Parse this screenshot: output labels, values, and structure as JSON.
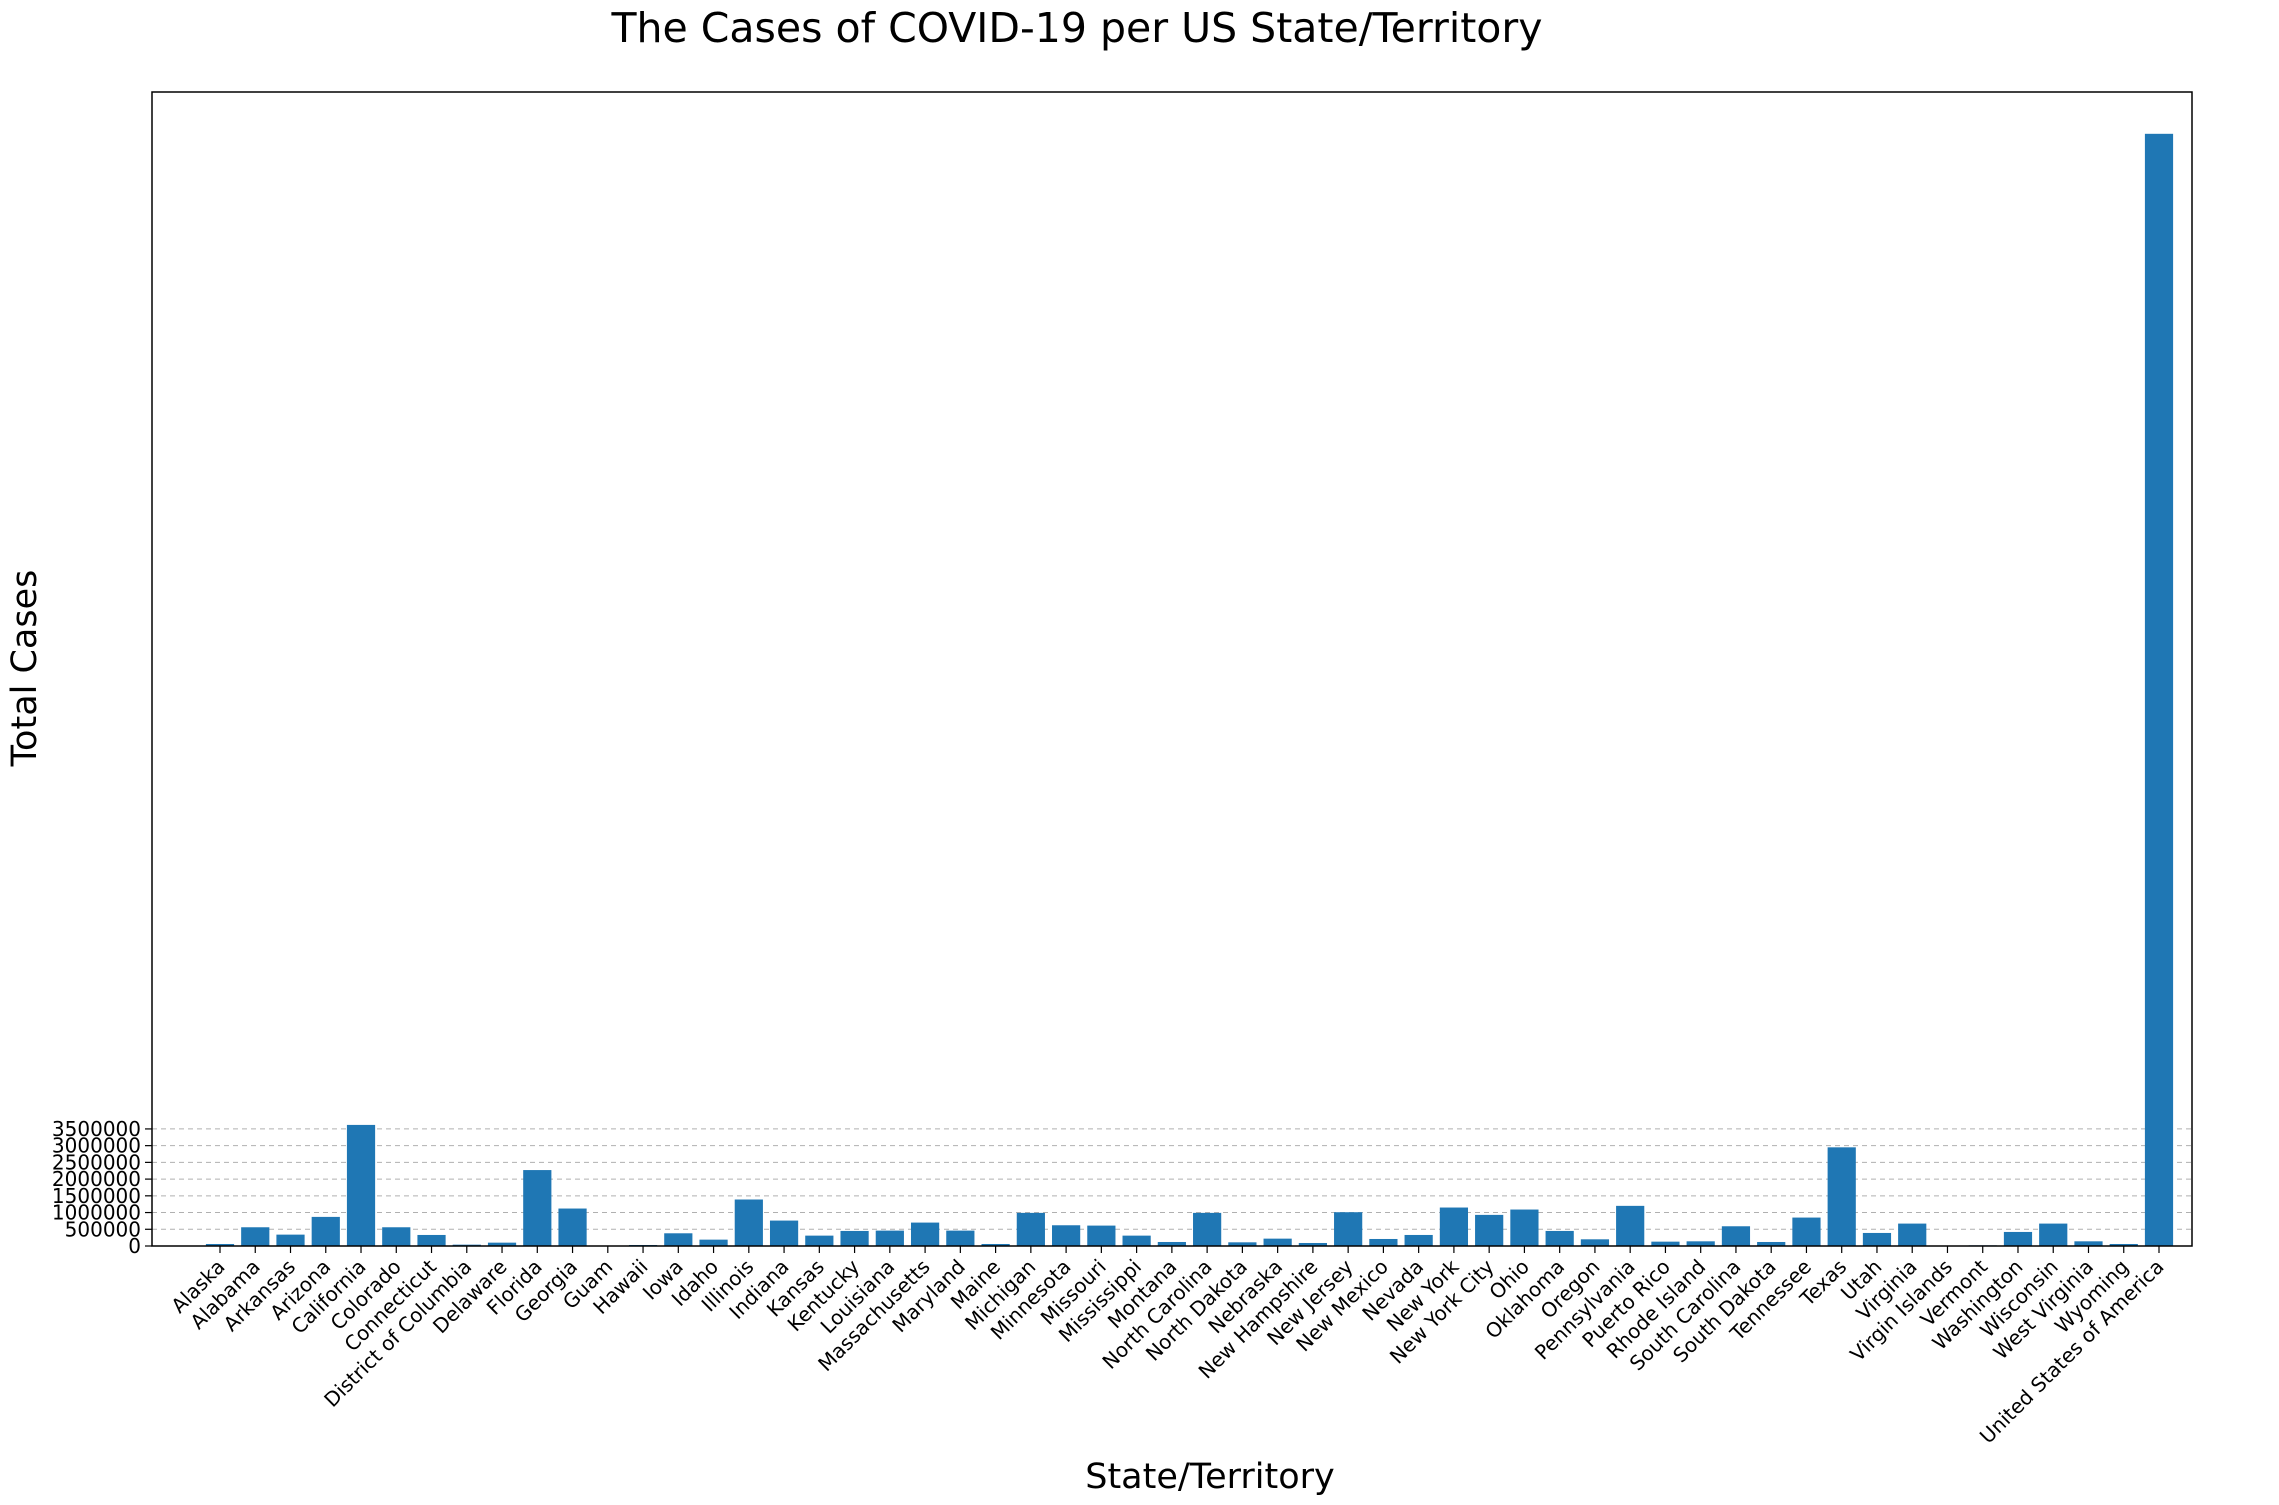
{
  "chart_data": {
    "type": "bar",
    "title": "The Cases of COVID-19 per US State/Territory",
    "xlabel": "State/Territory",
    "ylabel": "Total Cases",
    "ylim": [
      0,
      34500000
    ],
    "yticks": [
      0,
      500000,
      1000000,
      1500000,
      2000000,
      2500000,
      3000000,
      3500000
    ],
    "ytick_labels": [
      "0",
      "500000",
      "1000000",
      "1500000",
      "2000000",
      "2500000",
      "3000000",
      "3500000"
    ],
    "grid": "horizontal dashed",
    "bar_color": "#1f77b4",
    "categories": [
      "Alaska",
      "Alabama",
      "Arkansas",
      "Arizona",
      "California",
      "Colorado",
      "Connecticut",
      "District of Columbia",
      "Delaware",
      "Florida",
      "Georgia",
      "Guam",
      "Hawaii",
      "Iowa",
      "Idaho",
      "Illinois",
      "Indiana",
      "Kansas",
      "Kentucky",
      "Louisiana",
      "Massachusetts",
      "Maryland",
      "Maine",
      "Michigan",
      "Minnesota",
      "Missouri",
      "Mississippi",
      "Montana",
      "North Carolina",
      "North Dakota",
      "Nebraska",
      "New Hampshire",
      "New Jersey",
      "New Mexico",
      "Nevada",
      "New York",
      "New York City",
      "Ohio",
      "Oklahoma",
      "Oregon",
      "Pennsylvania",
      "Puerto Rico",
      "Rhode Island",
      "South Carolina",
      "South Dakota",
      "Tennessee",
      "Texas",
      "Utah",
      "Virginia",
      "Virgin Islands",
      "Vermont",
      "Washington",
      "Wisconsin",
      "West Virginia",
      "Wyoming",
      "United States of America"
    ],
    "values": [
      60000,
      560000,
      340000,
      870000,
      3620000,
      560000,
      330000,
      40000,
      100000,
      2270000,
      1120000,
      8000,
      30000,
      380000,
      190000,
      1390000,
      760000,
      310000,
      450000,
      460000,
      700000,
      460000,
      60000,
      990000,
      620000,
      610000,
      310000,
      120000,
      990000,
      110000,
      220000,
      90000,
      1010000,
      210000,
      330000,
      1150000,
      930000,
      1090000,
      450000,
      200000,
      1200000,
      130000,
      140000,
      590000,
      120000,
      850000,
      2950000,
      390000,
      670000,
      3000,
      20000,
      420000,
      670000,
      140000,
      60000,
      33250000
    ]
  }
}
